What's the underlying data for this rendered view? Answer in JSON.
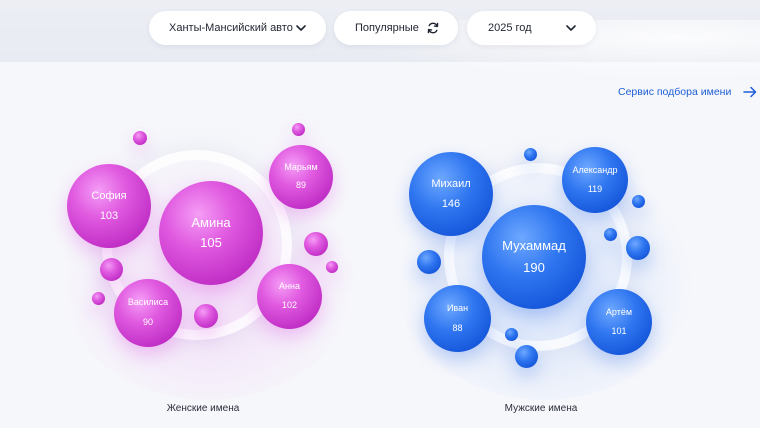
{
  "filters": {
    "region": {
      "label": "Ханты-Мансийский авто...",
      "icon": "chevron-down-icon"
    },
    "sort": {
      "label": "Популярные",
      "icon": "refresh-icon"
    },
    "year": {
      "label": "2025 год",
      "icon": "chevron-down-icon"
    }
  },
  "service_link": {
    "label": "Сервис подбора имени",
    "icon": "arrow-right-icon"
  },
  "colors": {
    "female_accent": "#d63ede",
    "male_accent": "#1f62e6",
    "link": "#1e5fd6",
    "background": "#f6f7fb"
  },
  "female": {
    "caption": "Женские имена",
    "names": [
      {
        "name": "Амина",
        "count": "105"
      },
      {
        "name": "София",
        "count": "103"
      },
      {
        "name": "Марьям",
        "count": "89"
      },
      {
        "name": "Анна",
        "count": "102"
      },
      {
        "name": "Василиса",
        "count": "90"
      }
    ]
  },
  "male": {
    "caption": "Мужские имена",
    "names": [
      {
        "name": "Мухаммад",
        "count": "190"
      },
      {
        "name": "Михаил",
        "count": "146"
      },
      {
        "name": "Александр",
        "count": "119"
      },
      {
        "name": "Иван",
        "count": "88"
      },
      {
        "name": "Артём",
        "count": "101"
      }
    ]
  }
}
